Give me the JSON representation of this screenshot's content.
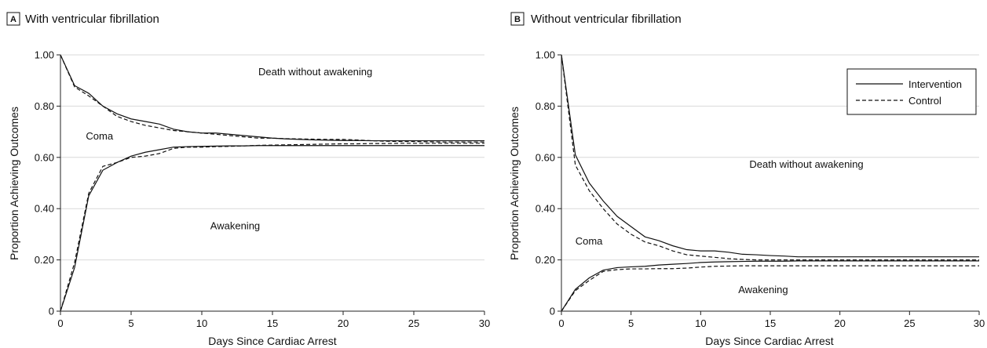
{
  "chart_data": [
    {
      "type": "line",
      "panel_letter": "A",
      "title": "With ventricular fibrillation",
      "xlabel": "Days Since Cardiac Arrest",
      "ylabel": "Proportion Achieving Outcomes",
      "xlim": [
        0,
        30
      ],
      "ylim": [
        0,
        1
      ],
      "x_ticks": [
        0,
        5,
        10,
        15,
        20,
        25,
        30
      ],
      "y_ticks": [
        0,
        0.2,
        0.4,
        0.6,
        0.8,
        1.0
      ],
      "y_tick_labels": [
        "0",
        "0.20",
        "0.40",
        "0.60",
        "0.80",
        "1.00"
      ],
      "grid": true,
      "legend": null,
      "annotations": [
        {
          "text": "Death without awakening",
          "x": 14,
          "y": 0.92
        },
        {
          "text": "Coma",
          "x": 1.8,
          "y": 0.67
        },
        {
          "text": "Awakening",
          "x": 10.6,
          "y": 0.32
        }
      ],
      "series": [
        {
          "name": "Intervention",
          "group": "death",
          "style": "solid",
          "x": [
            0,
            1,
            2,
            3,
            4,
            5,
            6,
            7,
            8,
            9,
            10,
            11,
            12,
            13,
            14,
            15,
            16,
            17,
            18,
            19,
            20,
            21,
            22,
            23,
            24,
            25,
            26,
            27,
            28,
            29,
            30
          ],
          "y": [
            1.0,
            0.88,
            0.85,
            0.8,
            0.77,
            0.75,
            0.74,
            0.73,
            0.71,
            0.7,
            0.695,
            0.695,
            0.69,
            0.685,
            0.68,
            0.675,
            0.672,
            0.67,
            0.668,
            0.667,
            0.666,
            0.666,
            0.665,
            0.665,
            0.665,
            0.665,
            0.665,
            0.665,
            0.665,
            0.665,
            0.665
          ]
        },
        {
          "name": "Control",
          "group": "death",
          "style": "dashed",
          "x": [
            0,
            1,
            2,
            3,
            4,
            5,
            6,
            7,
            8,
            9,
            10,
            11,
            12,
            13,
            14,
            15,
            16,
            17,
            18,
            19,
            20,
            21,
            22,
            23,
            24,
            25,
            26,
            27,
            28,
            29,
            30
          ],
          "y": [
            1.0,
            0.875,
            0.84,
            0.8,
            0.76,
            0.74,
            0.725,
            0.715,
            0.705,
            0.7,
            0.695,
            0.69,
            0.685,
            0.68,
            0.675,
            0.675,
            0.673,
            0.672,
            0.671,
            0.67,
            0.67,
            0.668,
            0.665,
            0.663,
            0.662,
            0.662,
            0.661,
            0.66,
            0.66,
            0.66,
            0.66
          ]
        },
        {
          "name": "Intervention",
          "group": "awakening",
          "style": "solid",
          "x": [
            0,
            1,
            2,
            3,
            4,
            5,
            6,
            7,
            8,
            9,
            10,
            11,
            12,
            13,
            14,
            15,
            16,
            17,
            18,
            19,
            20,
            21,
            22,
            23,
            24,
            25,
            26,
            27,
            28,
            29,
            30
          ],
          "y": [
            0,
            0.17,
            0.45,
            0.55,
            0.58,
            0.605,
            0.62,
            0.63,
            0.64,
            0.642,
            0.643,
            0.644,
            0.645,
            0.645,
            0.646,
            0.646,
            0.646,
            0.646,
            0.646,
            0.646,
            0.646,
            0.646,
            0.646,
            0.646,
            0.646,
            0.646,
            0.646,
            0.646,
            0.646,
            0.646,
            0.646
          ]
        },
        {
          "name": "Control",
          "group": "awakening",
          "style": "dashed",
          "x": [
            0,
            1,
            2,
            3,
            4,
            5,
            6,
            7,
            8,
            9,
            10,
            11,
            12,
            13,
            14,
            15,
            16,
            17,
            18,
            19,
            20,
            21,
            22,
            23,
            24,
            25,
            26,
            27,
            28,
            29,
            30
          ],
          "y": [
            0,
            0.19,
            0.46,
            0.565,
            0.58,
            0.6,
            0.605,
            0.615,
            0.635,
            0.64,
            0.64,
            0.642,
            0.643,
            0.645,
            0.647,
            0.648,
            0.649,
            0.65,
            0.651,
            0.652,
            0.653,
            0.653,
            0.654,
            0.654,
            0.655,
            0.655,
            0.655,
            0.655,
            0.655,
            0.655,
            0.655
          ]
        }
      ]
    },
    {
      "type": "line",
      "panel_letter": "B",
      "title": "Without ventricular fibrillation",
      "xlabel": "Days Since Cardiac Arrest",
      "ylabel": "Proportion Achieving Outcomes",
      "xlim": [
        0,
        30
      ],
      "ylim": [
        0,
        1
      ],
      "x_ticks": [
        0,
        5,
        10,
        15,
        20,
        25,
        30
      ],
      "y_ticks": [
        0,
        0.2,
        0.4,
        0.6,
        0.8,
        1.0
      ],
      "y_tick_labels": [
        "0",
        "0.20",
        "0.40",
        "0.60",
        "0.80",
        "1.00"
      ],
      "grid": true,
      "legend": {
        "position": "top-right",
        "entries": [
          {
            "label": "Intervention",
            "style": "solid"
          },
          {
            "label": "Control",
            "style": "dashed"
          }
        ]
      },
      "annotations": [
        {
          "text": "Death without awakening",
          "x": 13.5,
          "y": 0.56
        },
        {
          "text": "Coma",
          "x": 1.0,
          "y": 0.26
        },
        {
          "text": "Awakening",
          "x": 12.7,
          "y": 0.07
        }
      ],
      "series": [
        {
          "name": "Intervention",
          "group": "death",
          "style": "solid",
          "x": [
            0,
            1,
            2,
            3,
            4,
            5,
            6,
            7,
            8,
            9,
            10,
            11,
            12,
            13,
            14,
            15,
            16,
            17,
            18,
            19,
            20,
            21,
            22,
            23,
            24,
            25,
            26,
            27,
            28,
            29,
            30
          ],
          "y": [
            1.0,
            0.61,
            0.5,
            0.43,
            0.37,
            0.33,
            0.29,
            0.275,
            0.255,
            0.24,
            0.235,
            0.235,
            0.23,
            0.222,
            0.22,
            0.217,
            0.215,
            0.212,
            0.212,
            0.212,
            0.212,
            0.212,
            0.212,
            0.212,
            0.212,
            0.212,
            0.212,
            0.212,
            0.212,
            0.212,
            0.212
          ]
        },
        {
          "name": "Control",
          "group": "death",
          "style": "dashed",
          "x": [
            0,
            1,
            2,
            3,
            4,
            5,
            6,
            7,
            8,
            9,
            10,
            11,
            12,
            13,
            14,
            15,
            16,
            17,
            18,
            19,
            20,
            21,
            22,
            23,
            24,
            25,
            26,
            27,
            28,
            29,
            30
          ],
          "y": [
            1.0,
            0.57,
            0.47,
            0.4,
            0.34,
            0.3,
            0.27,
            0.255,
            0.235,
            0.22,
            0.215,
            0.21,
            0.205,
            0.202,
            0.2,
            0.2,
            0.2,
            0.2,
            0.2,
            0.2,
            0.2,
            0.2,
            0.2,
            0.2,
            0.2,
            0.2,
            0.2,
            0.2,
            0.2,
            0.2,
            0.2
          ]
        },
        {
          "name": "Intervention",
          "group": "awakening",
          "style": "solid",
          "x": [
            0,
            1,
            2,
            3,
            4,
            5,
            6,
            7,
            8,
            9,
            10,
            11,
            12,
            13,
            14,
            15,
            16,
            17,
            18,
            19,
            20,
            21,
            22,
            23,
            24,
            25,
            26,
            27,
            28,
            29,
            30
          ],
          "y": [
            0,
            0.085,
            0.13,
            0.16,
            0.17,
            0.173,
            0.175,
            0.18,
            0.183,
            0.186,
            0.19,
            0.192,
            0.193,
            0.194,
            0.195,
            0.195,
            0.195,
            0.196,
            0.196,
            0.196,
            0.196,
            0.196,
            0.196,
            0.196,
            0.196,
            0.196,
            0.196,
            0.196,
            0.196,
            0.196,
            0.196
          ]
        },
        {
          "name": "Control",
          "group": "awakening",
          "style": "dashed",
          "x": [
            0,
            1,
            2,
            3,
            4,
            5,
            6,
            7,
            8,
            9,
            10,
            11,
            12,
            13,
            14,
            15,
            16,
            17,
            18,
            19,
            20,
            21,
            22,
            23,
            24,
            25,
            26,
            27,
            28,
            29,
            30
          ],
          "y": [
            0,
            0.08,
            0.12,
            0.155,
            0.162,
            0.165,
            0.165,
            0.166,
            0.166,
            0.168,
            0.172,
            0.175,
            0.176,
            0.177,
            0.177,
            0.177,
            0.177,
            0.177,
            0.177,
            0.177,
            0.177,
            0.177,
            0.177,
            0.177,
            0.177,
            0.177,
            0.177,
            0.177,
            0.177,
            0.177,
            0.177
          ]
        }
      ]
    }
  ]
}
